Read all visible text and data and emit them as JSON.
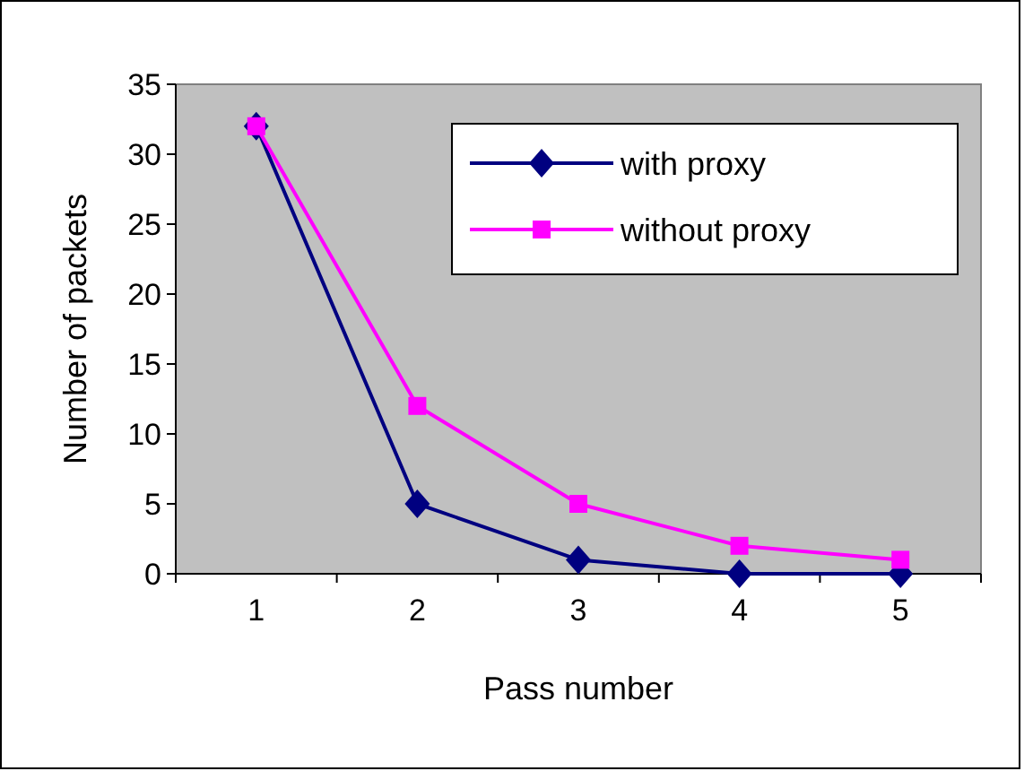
{
  "chart_data": {
    "type": "line",
    "xlabel": "Pass number",
    "ylabel": "Number of packets",
    "categories": [
      "1",
      "2",
      "3",
      "4",
      "5"
    ],
    "series": [
      {
        "name": "with proxy",
        "color": "#000080",
        "values": [
          32,
          5,
          1,
          0,
          0
        ],
        "marker": "diamond"
      },
      {
        "name": "without proxy",
        "color": "#ff00ff",
        "values": [
          32,
          12,
          5,
          2,
          1
        ],
        "marker": "square"
      }
    ],
    "ylim": [
      0,
      35
    ],
    "yticks": [
      0,
      5,
      10,
      15,
      20,
      25,
      30,
      35
    ],
    "grid": false,
    "legend": "top right",
    "line_style": "solid"
  }
}
